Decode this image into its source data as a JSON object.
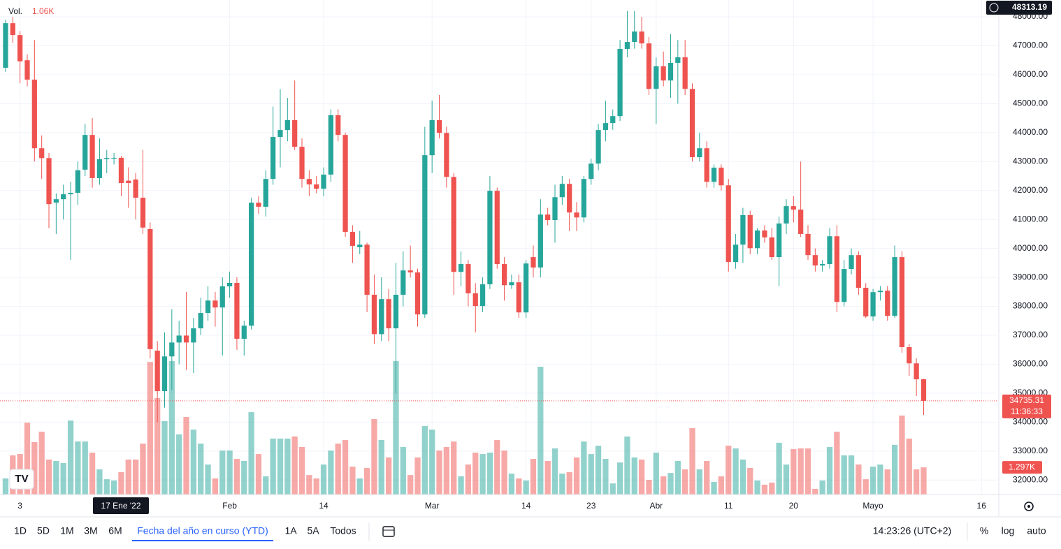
{
  "chart_data": {
    "type": "candlestick",
    "volume_title": "Vol.",
    "volume_value": "1.06K",
    "open": [
      46240,
      47780,
      47370,
      46500,
      45830,
      43460,
      43120,
      41580,
      41700,
      41870,
      41920,
      42720,
      43920,
      42430,
      43080,
      43100,
      43130,
      42340,
      42380,
      41750,
      40670,
      36470,
      35070,
      36270,
      36750,
      36990,
      36750,
      37240,
      37770,
      38200,
      37960,
      38690,
      38810,
      36880,
      37330,
      41580,
      41440,
      42400,
      43850,
      44090,
      44430,
      43510,
      42400,
      42210,
      42060,
      42550,
      44600,
      43920,
      40570,
      40040,
      40130,
      38400,
      37040,
      38250,
      37240,
      38400,
      39240,
      39170,
      37720,
      43220,
      44430,
      43990,
      42470,
      39190,
      39460,
      38450,
      38010,
      38760,
      41990,
      39460,
      38730,
      38830,
      37790,
      39700,
      39340,
      41170,
      40980,
      41770,
      42230,
      41240,
      41070,
      42400,
      42930,
      44090,
      44330,
      44570,
      46890,
      47130,
      47490,
      47080,
      45510,
      46290,
      45800,
      46410,
      46600,
      45510,
      43150,
      43460,
      42300,
      42790,
      42180,
      39530,
      40130,
      41150,
      40010,
      40620,
      40380,
      39700,
      40860,
      41460,
      41340,
      40500,
      39770,
      39410,
      39460,
      40420,
      38150,
      39290,
      39770,
      38640,
      37650,
      38490,
      38540,
      37670,
      39700,
      36590,
      36030,
      35480
    ],
    "high": [
      47900,
      48000,
      47500,
      46700,
      47200,
      43900,
      43300,
      41900,
      42200,
      42300,
      43000,
      44300,
      44500,
      43800,
      43400,
      43300,
      43200,
      42800,
      42600,
      43400,
      40900,
      36800,
      37100,
      37900,
      37500,
      38500,
      37600,
      38300,
      38700,
      38500,
      39000,
      39200,
      39000,
      37500,
      41750,
      41800,
      42700,
      44900,
      45500,
      45200,
      45800,
      43800,
      42700,
      42500,
      42800,
      44800,
      44800,
      44000,
      40800,
      40600,
      40200,
      39100,
      39000,
      38600,
      39500,
      39900,
      40100,
      39300,
      44200,
      45100,
      45300,
      44200,
      42600,
      39900,
      39600,
      38800,
      39000,
      42500,
      42100,
      39700,
      39100,
      39100,
      39600,
      40100,
      41700,
      41400,
      42200,
      42500,
      42400,
      41600,
      42500,
      43100,
      44300,
      45100,
      44800,
      47200,
      48200,
      48200,
      48000,
      47300,
      46600,
      46800,
      47400,
      47200,
      47200,
      45700,
      44000,
      43700,
      42900,
      42900,
      42400,
      40500,
      41400,
      41300,
      40700,
      40800,
      40700,
      41100,
      41700,
      41800,
      43000,
      40800,
      40000,
      39600,
      40700,
      40800,
      39600,
      40000,
      39900,
      38800,
      38600,
      38700,
      38700,
      40100,
      39900,
      36700,
      36200,
      35500
    ],
    "low": [
      46100,
      47100,
      45700,
      45600,
      43000,
      42400,
      40700,
      40500,
      41000,
      39600,
      41500,
      42500,
      42100,
      42200,
      42600,
      42900,
      41800,
      41400,
      41000,
      40500,
      36200,
      34000,
      34500,
      35100,
      36000,
      35800,
      35700,
      37000,
      37500,
      37300,
      36300,
      38300,
      36500,
      36300,
      37200,
      41200,
      41100,
      42200,
      42800,
      43700,
      43400,
      42100,
      41800,
      41900,
      41800,
      42300,
      43700,
      40400,
      39500,
      39800,
      37800,
      36700,
      36800,
      36800,
      35000,
      38000,
      39000,
      37300,
      37600,
      42600,
      43800,
      42100,
      38400,
      38700,
      38000,
      37100,
      37800,
      38600,
      39300,
      38200,
      38600,
      37600,
      37600,
      39000,
      39000,
      40800,
      40200,
      41500,
      40600,
      40600,
      40900,
      42200,
      42700,
      43700,
      44100,
      44400,
      46600,
      46900,
      46900,
      45300,
      44300,
      45600,
      45200,
      45000,
      45300,
      43000,
      43000,
      42100,
      42100,
      42000,
      39200,
      39300,
      39500,
      39800,
      39800,
      40200,
      39600,
      38700,
      40500,
      40900,
      40400,
      39600,
      39200,
      39200,
      39300,
      37800,
      38000,
      39100,
      38400,
      37600,
      37500,
      38200,
      37500,
      37600,
      36400,
      35600,
      34900,
      34250
    ],
    "close": [
      47780,
      47370,
      46460,
      45830,
      43460,
      43120,
      41530,
      41700,
      41870,
      41920,
      42700,
      43920,
      42430,
      43080,
      43120,
      43130,
      42260,
      42260,
      41750,
      40720,
      36520,
      35070,
      36270,
      36750,
      36990,
      36750,
      37240,
      37770,
      38200,
      37960,
      38690,
      38810,
      36880,
      37330,
      41580,
      41440,
      42400,
      43850,
      44090,
      44430,
      43510,
      42400,
      42210,
      42060,
      42550,
      44600,
      43920,
      40570,
      40090,
      40130,
      38400,
      37040,
      38250,
      37240,
      38400,
      39240,
      39170,
      37720,
      43220,
      44430,
      43990,
      42470,
      39190,
      39460,
      38450,
      38010,
      38760,
      41990,
      39460,
      38730,
      38830,
      37790,
      39480,
      39340,
      41170,
      40980,
      41770,
      42230,
      41240,
      41070,
      42400,
      42930,
      44090,
      44330,
      44570,
      46890,
      47130,
      47490,
      47080,
      45510,
      46290,
      45800,
      46410,
      46600,
      45510,
      43150,
      43460,
      42300,
      42790,
      42180,
      39530,
      40130,
      41150,
      40010,
      40620,
      40380,
      39700,
      40860,
      41460,
      41340,
      40500,
      39770,
      39410,
      39460,
      40420,
      38150,
      39290,
      39770,
      38640,
      37650,
      38490,
      38540,
      37670,
      39700,
      36590,
      36030,
      35480,
      34735.31
    ],
    "volume": [
      0.77,
      1.87,
      1.93,
      3.43,
      2.5,
      3.0,
      1.67,
      1.6,
      1.5,
      3.53,
      2.53,
      2.53,
      2.0,
      1.2,
      0.73,
      0.67,
      1.07,
      1.67,
      1.67,
      2.43,
      6.33,
      4.6,
      3.5,
      6.37,
      2.87,
      3.7,
      3.1,
      2.43,
      1.43,
      0.77,
      2.1,
      2.1,
      1.7,
      1.6,
      3.93,
      1.93,
      0.87,
      2.67,
      2.67,
      2.67,
      2.77,
      2.27,
      0.93,
      0.77,
      1.43,
      2.1,
      2.43,
      2.6,
      1.33,
      0.77,
      1.27,
      3.6,
      2.6,
      1.77,
      6.37,
      2.27,
      0.93,
      1.77,
      3.27,
      3.1,
      2.1,
      2.27,
      2.53,
      0.87,
      1.43,
      2.0,
      1.93,
      2.0,
      2.6,
      2.1,
      1.0,
      0.77,
      0.67,
      1.7,
      6.1,
      1.6,
      2.2,
      1.0,
      1.07,
      1.77,
      2.53,
      1.93,
      2.33,
      1.7,
      0.53,
      1.53,
      2.77,
      1.77,
      1.67,
      0.7,
      2.0,
      0.87,
      1.03,
      1.6,
      1.2,
      3.17,
      1.2,
      1.6,
      0.6,
      0.87,
      2.33,
      2.2,
      1.67,
      1.27,
      0.67,
      0.47,
      0.57,
      2.47,
      1.43,
      2.17,
      2.2,
      2.2,
      0.27,
      0.67,
      2.27,
      3.0,
      1.87,
      1.87,
      1.43,
      0.73,
      1.33,
      1.43,
      1.2,
      2.37,
      3.77,
      2.67,
      1.2,
      1.297
    ],
    "up_color": "#26a69a",
    "down_color": "#ef5350",
    "ylim": [
      31500,
      48580
    ],
    "volume_ylim": [
      0,
      23.6
    ],
    "xlim": [
      -0.77,
      137.3
    ],
    "yticks": [
      {
        "value": 32000,
        "label": "32000.00"
      },
      {
        "value": 33000,
        "label": "33000.00"
      },
      {
        "value": 34000,
        "label": "34000.00"
      },
      {
        "value": 35000,
        "label": "35000.00"
      },
      {
        "value": 36000,
        "label": "36000.00"
      },
      {
        "value": 37000,
        "label": "37000.00"
      },
      {
        "value": 38000,
        "label": "38000.00"
      },
      {
        "value": 39000,
        "label": "39000.00"
      },
      {
        "value": 40000,
        "label": "40000.00"
      },
      {
        "value": 41000,
        "label": "41000.00"
      },
      {
        "value": 42000,
        "label": "42000.00"
      },
      {
        "value": 43000,
        "label": "43000.00"
      },
      {
        "value": 44000,
        "label": "44000.00"
      },
      {
        "value": 45000,
        "label": "45000.00"
      },
      {
        "value": 46000,
        "label": "46000.00"
      },
      {
        "value": 47000,
        "label": "47000.00"
      },
      {
        "value": 48000,
        "label": "48000.00"
      }
    ],
    "xticks": [
      {
        "value": 2,
        "label": "3"
      },
      {
        "value": 31,
        "label": "Feb"
      },
      {
        "value": 44,
        "label": "14"
      },
      {
        "value": 59,
        "label": "Mar"
      },
      {
        "value": 72,
        "label": "14"
      },
      {
        "value": 81,
        "label": "23"
      },
      {
        "value": 90,
        "label": "Abr"
      },
      {
        "value": 100,
        "label": "11"
      },
      {
        "value": 109,
        "label": "20"
      },
      {
        "value": 120,
        "label": "Mayo"
      },
      {
        "value": 135,
        "label": "16"
      }
    ],
    "grid": true,
    "crosshair_date": "17 Ene '22",
    "top_price": 48313.19,
    "last_price": 34735.31,
    "countdown": "11:36:33",
    "last_volume_label": "1.297K"
  },
  "toolbar": {
    "ranges": [
      "1D",
      "5D",
      "1M",
      "3M",
      "6M",
      "Fecha del año en curso (YTD)",
      "1A",
      "5A",
      "Todos"
    ],
    "time": "14:23:26 (UTC+2)",
    "options": [
      "%",
      "log",
      "auto"
    ]
  }
}
